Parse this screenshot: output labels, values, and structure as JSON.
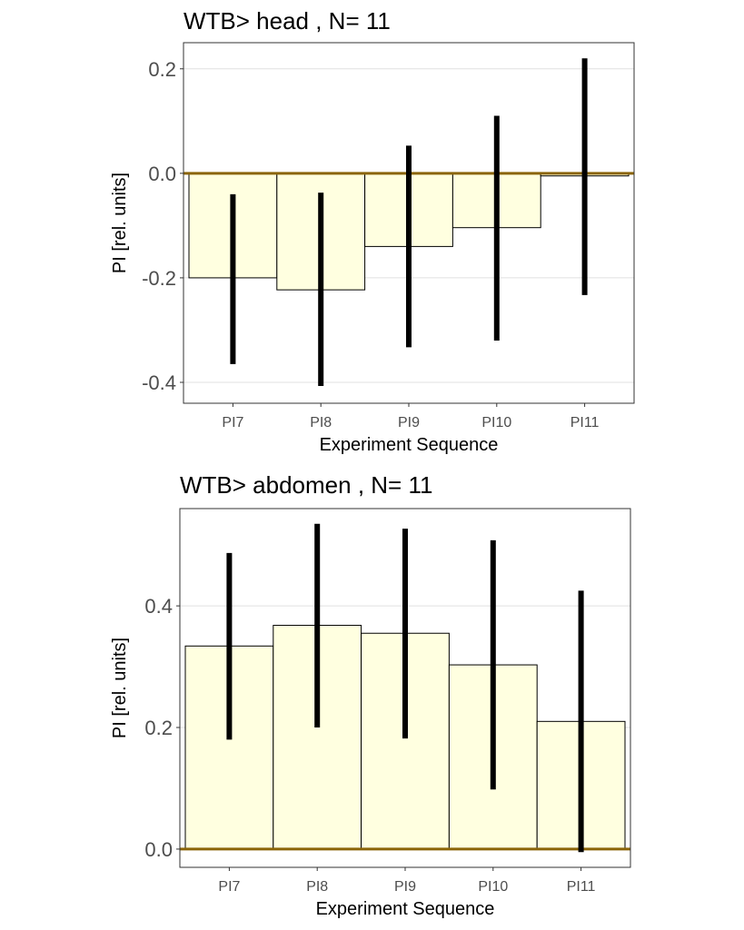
{
  "chart_data": [
    {
      "type": "bar",
      "title": "WTB> head , N= 11",
      "xlabel": "Experiment Sequence",
      "ylabel": "PI [rel. units]",
      "categories": [
        "PI7",
        "PI8",
        "PI9",
        "PI10",
        "PI11"
      ],
      "values": [
        -0.2,
        -0.223,
        -0.14,
        -0.104,
        -0.005
      ],
      "error_low": [
        -0.365,
        -0.407,
        -0.333,
        -0.32,
        -0.233
      ],
      "error_high": [
        -0.04,
        -0.037,
        0.053,
        0.11,
        0.22
      ],
      "ylim": [
        -0.44,
        0.25
      ],
      "yticks": [
        -0.4,
        -0.2,
        0.0,
        0.2
      ],
      "ytick_labels": [
        "-0.4",
        "-0.2",
        "0.0",
        "0.2"
      ],
      "grid": true,
      "bar_color": "#ffffe0",
      "zero_line_color": "#8b6508"
    },
    {
      "type": "bar",
      "title": "WTB> abdomen , N= 11",
      "xlabel": "Experiment Sequence",
      "ylabel": "PI [rel. units]",
      "categories": [
        "PI7",
        "PI8",
        "PI9",
        "PI10",
        "PI11"
      ],
      "values": [
        0.334,
        0.368,
        0.355,
        0.303,
        0.21
      ],
      "error_low": [
        0.18,
        0.2,
        0.182,
        0.098,
        -0.005
      ],
      "error_high": [
        0.487,
        0.535,
        0.527,
        0.508,
        0.425
      ],
      "ylim": [
        -0.03,
        0.56
      ],
      "yticks": [
        0.0,
        0.2,
        0.4
      ],
      "ytick_labels": [
        "0.0",
        "0.2",
        "0.4"
      ],
      "grid": true,
      "bar_color": "#ffffe0",
      "zero_line_color": "#8b6508"
    }
  ]
}
